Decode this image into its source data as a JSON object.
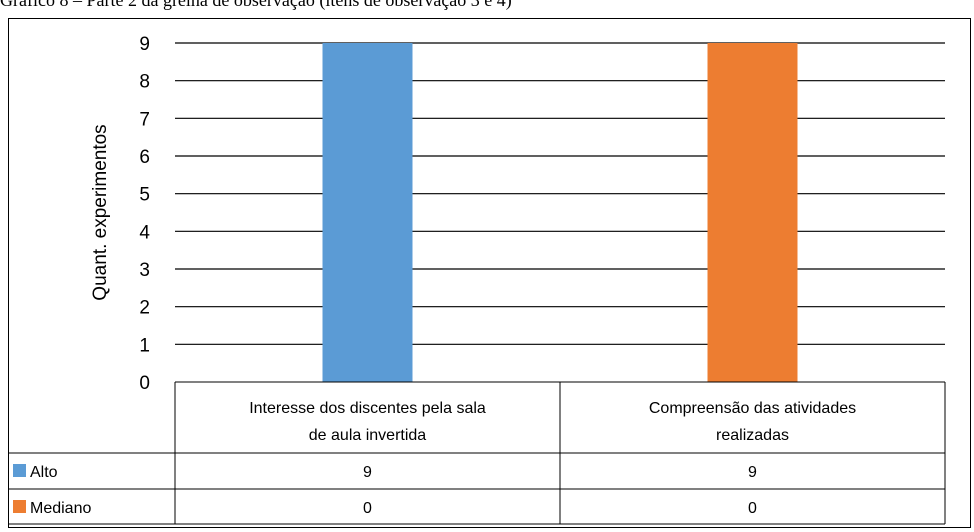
{
  "caption": "Gráfico 8 – Parte 2 da grelha de observação (itens de observação 3 e 4)",
  "chart_data": {
    "type": "bar",
    "ylabel": "Quant. experimentos",
    "ylim": [
      0,
      9
    ],
    "yticks": [
      0,
      1,
      2,
      3,
      4,
      5,
      6,
      7,
      8,
      9
    ],
    "categories": [
      [
        "Interesse dos discentes pela sala",
        "de aula invertida"
      ],
      [
        "Compreensão das atividades",
        "realizadas"
      ]
    ],
    "series": [
      {
        "name": "Alto",
        "color": "#5b9bd5",
        "values": [
          9,
          9
        ]
      },
      {
        "name": "Mediano",
        "color": "#ed7d31",
        "values": [
          0,
          0
        ]
      }
    ],
    "grid": true,
    "legend": "data-table"
  }
}
